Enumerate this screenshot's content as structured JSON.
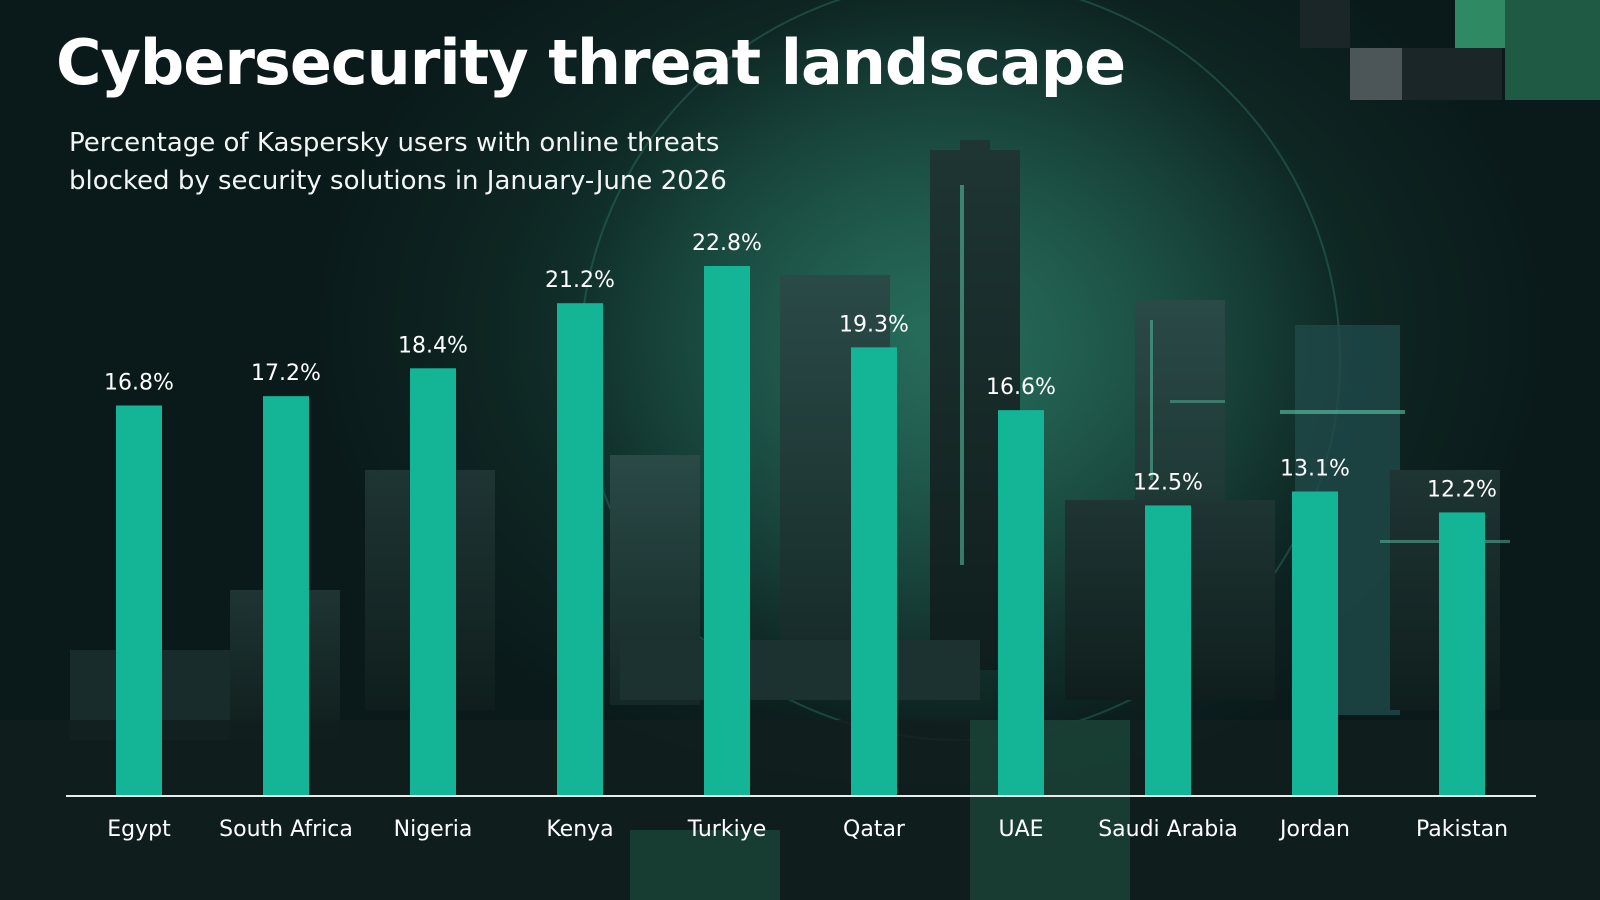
{
  "header": {
    "title": "Cybersecurity threat landscape",
    "subtitle_line1": "Percentage of Kaspersky users with online threats",
    "subtitle_line2": "blocked by security solutions in January-June 2026"
  },
  "colors": {
    "bar": "#13b596",
    "axis": "#e8ecea",
    "text": "#ffffff"
  },
  "chart_data": {
    "type": "bar",
    "categories": [
      "Egypt",
      "South Africa",
      "Nigeria",
      "Kenya",
      "Turkiye",
      "Qatar",
      "UAE",
      "Saudi Arabia",
      "Jordan",
      "Pakistan"
    ],
    "values": [
      16.8,
      17.2,
      18.4,
      21.2,
      22.8,
      19.3,
      16.6,
      12.5,
      13.1,
      12.2
    ],
    "data_labels": [
      "16.8%",
      "17.2%",
      "18.4%",
      "21.2%",
      "22.8%",
      "19.3%",
      "16.6%",
      "12.5%",
      "13.1%",
      "12.2%"
    ],
    "title": "Cybersecurity threat landscape",
    "xlabel": "",
    "ylabel": "",
    "ylim": [
      0,
      22.8
    ],
    "grid": false,
    "legend": "none"
  }
}
